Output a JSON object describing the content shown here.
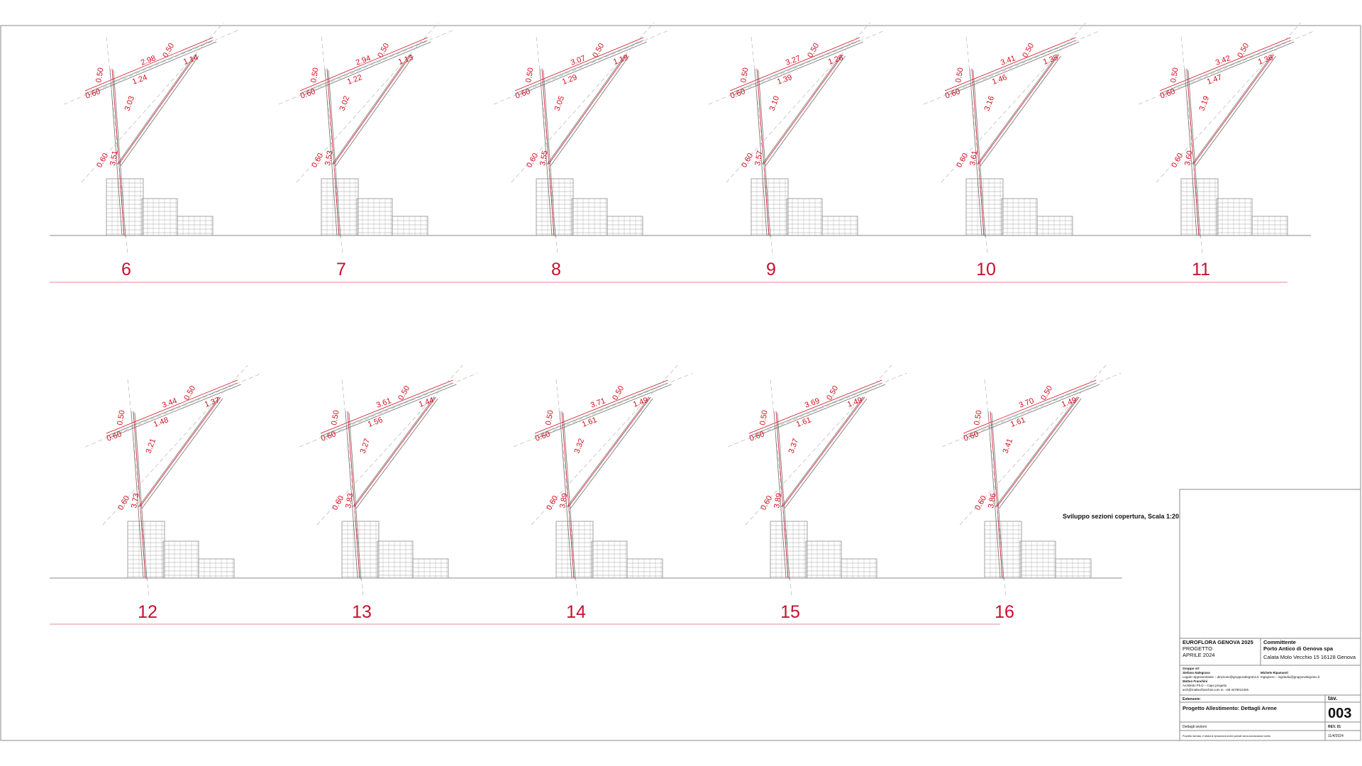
{
  "colors": {
    "accent": "#d01020",
    "section_number": "#c8102e",
    "line": "#9a9a9a"
  },
  "note": "Sviluppo sezioni copertura, Scala 1:20",
  "sections": [
    {
      "number": "6",
      "dims": [
        "0.50",
        "2.98",
        "0.50",
        "1.14",
        "0.60",
        "1.24",
        "3.03",
        "0.60",
        "3.51"
      ]
    },
    {
      "number": "7",
      "dims": [
        "0.50",
        "2.94",
        "0.50",
        "1.13",
        "0.60",
        "1.22",
        "3.02",
        "0.60",
        "3.53"
      ]
    },
    {
      "number": "8",
      "dims": [
        "0.50",
        "3.07",
        "0.50",
        "1.19",
        "0.60",
        "1.29",
        "3.05",
        "0.60",
        "3.55"
      ]
    },
    {
      "number": "9",
      "dims": [
        "0.50",
        "3.27",
        "0.50",
        "1.28",
        "0.60",
        "1.39",
        "3.10",
        "0.60",
        "3.57"
      ]
    },
    {
      "number": "10",
      "dims": [
        "0.50",
        "3.41",
        "0.50",
        "1.35",
        "0.60",
        "1.46",
        "3.16",
        "0.60",
        "3.61"
      ]
    },
    {
      "number": "11",
      "dims": [
        "0.50",
        "3.42",
        "0.50",
        "1.36",
        "0.60",
        "1.47",
        "3.19",
        "0.60",
        "3.60"
      ]
    },
    {
      "number": "12",
      "dims": [
        "0.50",
        "3.44",
        "0.50",
        "1.37",
        "0.60",
        "1.48",
        "3.21",
        "0.60",
        "3.73"
      ]
    },
    {
      "number": "13",
      "dims": [
        "0.50",
        "3.61",
        "0.50",
        "1.44",
        "0.60",
        "1.56",
        "3.27",
        "0.60",
        "3.83"
      ]
    },
    {
      "number": "14",
      "dims": [
        "0.50",
        "3.71",
        "0.50",
        "1.49",
        "0.60",
        "1.61",
        "3.32",
        "0.60",
        "3.89"
      ]
    },
    {
      "number": "15",
      "dims": [
        "0.50",
        "3.69",
        "0.50",
        "1.49",
        "0.60",
        "1.61",
        "3.37",
        "0.60",
        "3.89"
      ]
    },
    {
      "number": "16",
      "dims": [
        "0.50",
        "3.70",
        "0.50",
        "1.49",
        "0.60",
        "1.61",
        "3.41",
        "0.60",
        "3.86"
      ]
    }
  ],
  "title_block": {
    "event": "EUROFLORA GENOVA 2025",
    "phase": "PROGETTO",
    "date": "APRILE 2024",
    "client_label": "Committente",
    "client_name": "Porto Antico di Genova spa",
    "client_address": "Calata Molo Vecchio 15 16128 Genova",
    "studio_label": "Gruppo srl",
    "studio_lines": [
      "Stefano Nalegrano",
      "Legale rappresentante – direzione@gruppovalegrano.it",
      "Matteo Franchini",
      "Architetto Ph.D – Capo progetto",
      "arch@matteofranchini.com m. +39 3479012345"
    ],
    "consultant_lines": [
      "Michele Ripamonti",
      "Ingegnere – ingstudio@gruppovalegrano.it"
    ],
    "extensor_label": "Estensore:",
    "drawing_title": "Progetto Allestimento: Dettagli Arene",
    "drawing_subtitle": "Dettagli sezioni",
    "tav_label": "tav.",
    "tav_number": "003",
    "rev": "REV. 01",
    "footer_note": "Proprietà riservata, è vietata la riproduzione anche parziale senza autorizzazione scritta",
    "issue_date": "11/4/2024"
  }
}
